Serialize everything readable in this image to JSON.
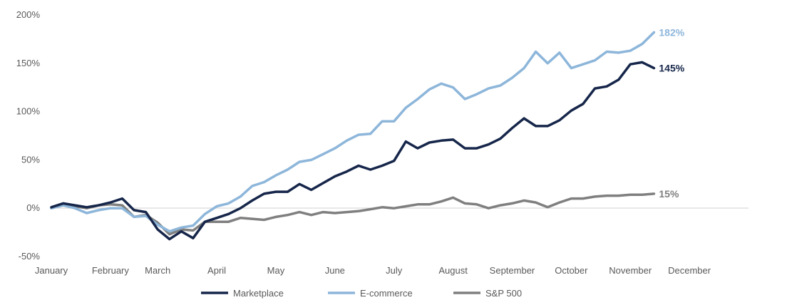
{
  "chart_data": {
    "type": "line",
    "title": "",
    "xlabel": "",
    "ylabel": "",
    "ylim": [
      -50,
      200
    ],
    "yticks": [
      -50,
      0,
      50,
      100,
      150,
      200
    ],
    "ytick_labels": [
      "-50%",
      "0%",
      "50%",
      "100%",
      "150%",
      "200%"
    ],
    "months": [
      "January",
      "February",
      "March",
      "April",
      "May",
      "June",
      "July",
      "August",
      "September",
      "October",
      "November",
      "December"
    ],
    "month_positions": [
      0,
      5,
      9,
      14,
      19,
      24,
      29,
      34,
      39,
      44,
      49,
      54
    ],
    "x_max": 59,
    "legend_position": "bottom",
    "series": [
      {
        "name": "Marketplace",
        "color": "#16264a",
        "end_label": "145%",
        "values": [
          1,
          5,
          3,
          1,
          3,
          6,
          10,
          -2,
          -4,
          -22,
          -32,
          -24,
          -31,
          -14,
          -10,
          -6,
          0,
          8,
          15,
          17,
          17,
          25,
          19,
          26,
          33,
          38,
          44,
          40,
          44,
          49,
          69,
          62,
          68,
          70,
          71,
          62,
          62,
          66,
          72,
          83,
          93,
          85,
          85,
          91,
          101,
          108,
          124,
          126,
          133,
          149,
          151,
          145
        ]
      },
      {
        "name": "E-commerce",
        "color": "#8db6da",
        "end_label": "182%",
        "values": [
          0,
          3,
          0,
          -5,
          -2,
          0,
          0,
          -9,
          -8,
          -17,
          -24,
          -20,
          -18,
          -6,
          2,
          5,
          12,
          23,
          27,
          34,
          40,
          48,
          50,
          56,
          62,
          70,
          76,
          77,
          90,
          90,
          104,
          113,
          123,
          129,
          125,
          113,
          118,
          124,
          127,
          135,
          145,
          162,
          150,
          161,
          145,
          149,
          153,
          162,
          161,
          163,
          170,
          182
        ]
      },
      {
        "name": "S&P 500",
        "color": "#7f7f7f",
        "end_label": "15%",
        "values": [
          0,
          3,
          2,
          0,
          3,
          4,
          3,
          -9,
          -7,
          -15,
          -27,
          -22,
          -23,
          -14,
          -14,
          -14,
          -10,
          -11,
          -12,
          -9,
          -7,
          -4,
          -7,
          -4,
          -5,
          -4,
          -3,
          -1,
          1,
          0,
          2,
          4,
          4,
          7,
          11,
          5,
          4,
          0,
          3,
          5,
          8,
          6,
          1,
          6,
          10,
          10,
          12,
          13,
          13,
          14,
          14,
          15
        ]
      }
    ]
  }
}
